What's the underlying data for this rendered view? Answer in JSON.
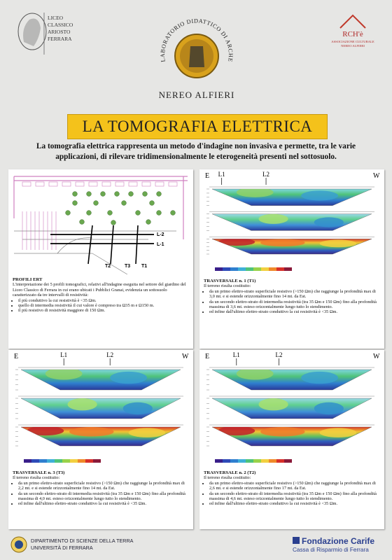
{
  "header": {
    "school": [
      "LICEO",
      "CLASSICO",
      "ARIOSTO",
      "FERRARA"
    ],
    "lab_arc": "LABORATORIO DIDATTICO DI ARCHEOLOGIA",
    "lab_name": "NEREO ALFIERI",
    "assoc_logo": "RCH'è",
    "assoc_name": [
      "ASSOCIAZIONE CULTURALE",
      "NEREO ALFIERI"
    ]
  },
  "title": "LA TOMOGRAFIA ELETTRICA",
  "subtitle": "La tomografia elettrica rappresenta un metodo d'indagine non invasiva e permette, tra le varie applicazioni, di rilevare tridimensionalmente le eterogeneità presenti nel sottosuolo.",
  "panels": [
    {
      "figure": {
        "labels": [
          "L-2",
          "L-1",
          "T2",
          "T3",
          "T1"
        ]
      },
      "heading": "PROFILI ERT",
      "intro": "L'interpretazione dei 5 profili tomografici, relativi all'indagine eseguita nel settore del giardino del Liceo Classico di Ferrara in cui erano ubicati i Pubblici Granai, evidenzia un sottosuolo caratterizzato da tre intervalli di resistività:",
      "bullets": [
        "il più conduttivo la cui resistività è <35 Ωm.",
        "quello di intermedia resistività il cui valore è compreso tra Ω35 m e Ω150 m.",
        "il più resistivo di resistività maggiore di 150 Ωm."
      ]
    },
    {
      "figure": {
        "east": "E",
        "west": "W",
        "markers": [
          "L1",
          "L2"
        ]
      },
      "heading": "TRASVERSALE n. 1 (T1)",
      "intro": "Il terreno risulta costituito:",
      "bullets": [
        "da un primo elettro-strato superficiale resistivo (>150 Ωm) che raggiunge la profondità max di 3,0 mt. e si estende orizzontalmente fino 14 mt. da Est.",
        "da un secondo elettro-strato di intermedia resistività (tra 35 Ωm e 150 Ωm) fino alla profondità massima di 3,6 mt. esteso orizzontalmente lungo tutto lo stendimento.",
        "ed infine dall'ultimo elettro-strato conduttivo la cui resistività è <35 Ωm."
      ]
    },
    {
      "figure": {
        "east": "E",
        "west": "W",
        "markers": [
          "L1",
          "L2"
        ]
      },
      "heading": "TRASVERSALE n. 3 (T3)",
      "intro": "Il terreno risulta costituito:",
      "bullets": [
        "da un primo elettro-strato superficiale resistivo (>150 Ωm) che raggiunge la profondità max di 2,2 mt. e si estende orizzontalmente fino 14 mt. da Est.",
        "da un secondo elettro-strato di intermedia resistività (tra 35 Ωm e 150 Ωm) fino alla profondità massima di 4,0 mt. esteso orizzontalmente lungo tutto lo stendimento.",
        "ed infine dall'ultimo elettro-strato conduttivo la cui resistività è <35 Ωm."
      ]
    },
    {
      "figure": {
        "east": "E",
        "west": "W",
        "markers": [
          "L1",
          "L2"
        ]
      },
      "heading": "TRASVERSALE n. 2 (T2)",
      "intro": "Il terreno risulta costituito:",
      "bullets": [
        "da un primo elettro-strato superficiale resistivo (>150 Ωm) che raggiunge la profondità max di 2,6 mt. e si estende orizzontalmente fino 17 mt. da Est.",
        "da un secondo elettro-strato di intermedia resistività (tra 35 Ωm e 150 Ωm) fino alla profondità massima di 4,6 mt. esteso orizzontalmente lungo tutto lo stendimento.",
        "ed infine dall'ultimo elettro-strato conduttivo la cui resistività è <35 Ωm."
      ]
    }
  ],
  "footer": {
    "university": [
      "DIPARTIMENTO DI SCIENZE DELLA TERRA",
      "UNIVERSITÀ DI FERRARA"
    ],
    "sponsor": "Fondazione Carife",
    "sponsor_sub": "Cassa di Risparmio di Ferrara"
  }
}
